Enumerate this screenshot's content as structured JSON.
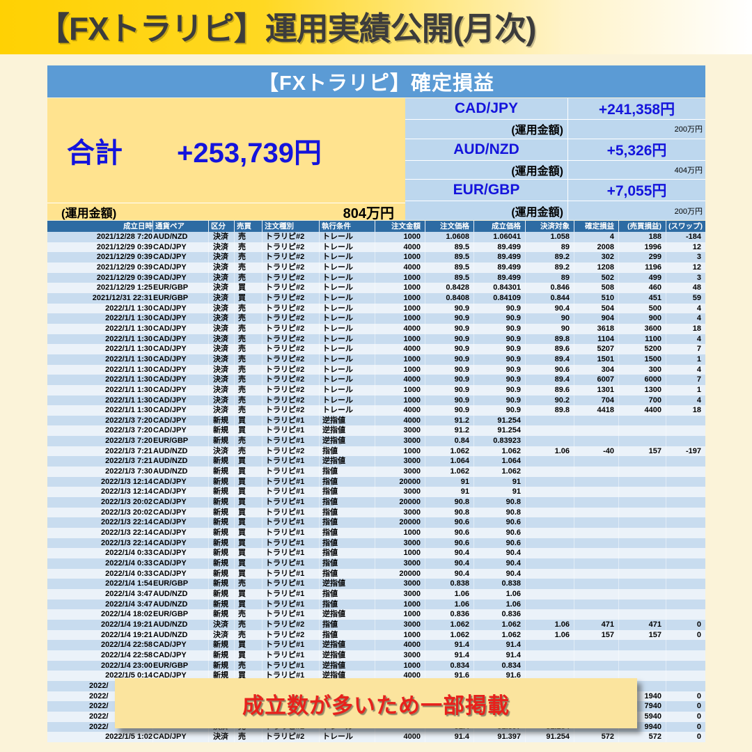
{
  "page": {
    "title": "【FXトラリピ】運用実績公開(月次)"
  },
  "summary": {
    "header": "【FXトラリピ】確定損益",
    "total_label": "合計",
    "total_value": "+253,739円",
    "total_fund_label": "(運用金額)",
    "total_fund_value": "804万円",
    "pairs": [
      {
        "pair": "CAD/JPY",
        "profit": "+241,358円",
        "fund_label": "(運用金額)",
        "fund_value": "200万円"
      },
      {
        "pair": "AUD/NZD",
        "profit": "+5,326円",
        "fund_label": "(運用金額)",
        "fund_value": "404万円"
      },
      {
        "pair": "EUR/GBP",
        "profit": "+7,055円",
        "fund_label": "(運用金額)",
        "fund_value": "200万円"
      }
    ]
  },
  "overlay": {
    "text": "成立数が多いため一部掲載"
  },
  "colors": {
    "title_bar_gold": "#FFD103",
    "page_background": "#FBF3D9",
    "summary_header_blue": "#5B9BD5",
    "summary_cell_blue": "#BDD7EE",
    "summary_cream": "#FFE38F",
    "accent_blue_text": "#1414DC",
    "table_header_blue": "#2D6BA3",
    "row_blue": "#C8DCEF",
    "row_light": "#EBF2F9",
    "overlay_bg": "#FBE49E",
    "overlay_red": "#E8211C"
  },
  "table": {
    "columns": [
      "成立日時",
      "通貨ペア",
      "区分",
      "売買",
      "注文種別",
      "執行条件",
      "注文金額",
      "注文価格",
      "成立価格",
      "決済対象",
      "確定損益",
      "(売買損益)",
      "(スワップ)"
    ],
    "rows": [
      {
        "c": [
          "2021/12/28 7:20",
          "AUD/NZD",
          "決済",
          "売",
          "トラリピ#2",
          "トレール",
          "1000",
          "1.0608",
          "1.06041",
          "1.058",
          "4",
          "188",
          "-184"
        ]
      },
      {
        "c": [
          "2021/12/29 0:39",
          "CAD/JPY",
          "決済",
          "売",
          "トラリピ#2",
          "トレール",
          "4000",
          "89.5",
          "89.499",
          "89",
          "2008",
          "1996",
          "12"
        ]
      },
      {
        "c": [
          "2021/12/29 0:39",
          "CAD/JPY",
          "決済",
          "売",
          "トラリピ#2",
          "トレール",
          "1000",
          "89.5",
          "89.499",
          "89.2",
          "302",
          "299",
          "3"
        ]
      },
      {
        "c": [
          "2021/12/29 0:39",
          "CAD/JPY",
          "決済",
          "売",
          "トラリピ#2",
          "トレール",
          "4000",
          "89.5",
          "89.499",
          "89.2",
          "1208",
          "1196",
          "12"
        ]
      },
      {
        "c": [
          "2021/12/29 0:39",
          "CAD/JPY",
          "決済",
          "売",
          "トラリピ#2",
          "トレール",
          "1000",
          "89.5",
          "89.499",
          "89",
          "502",
          "499",
          "3"
        ]
      },
      {
        "c": [
          "2021/12/29 1:25",
          "EUR/GBP",
          "決済",
          "買",
          "トラリピ#2",
          "トレール",
          "1000",
          "0.8428",
          "0.84301",
          "0.846",
          "508",
          "460",
          "48"
        ]
      },
      {
        "c": [
          "2021/12/31 22:31",
          "EUR/GBP",
          "決済",
          "買",
          "トラリピ#2",
          "トレール",
          "1000",
          "0.8408",
          "0.84109",
          "0.844",
          "510",
          "451",
          "59"
        ]
      },
      {
        "c": [
          "2022/1/1 1:30",
          "CAD/JPY",
          "決済",
          "売",
          "トラリピ#2",
          "トレール",
          "1000",
          "90.9",
          "90.9",
          "90.4",
          "504",
          "500",
          "4"
        ]
      },
      {
        "c": [
          "2022/1/1 1:30",
          "CAD/JPY",
          "決済",
          "売",
          "トラリピ#2",
          "トレール",
          "1000",
          "90.9",
          "90.9",
          "90",
          "904",
          "900",
          "4"
        ]
      },
      {
        "c": [
          "2022/1/1 1:30",
          "CAD/JPY",
          "決済",
          "売",
          "トラリピ#2",
          "トレール",
          "4000",
          "90.9",
          "90.9",
          "90",
          "3618",
          "3600",
          "18"
        ]
      },
      {
        "c": [
          "2022/1/1 1:30",
          "CAD/JPY",
          "決済",
          "売",
          "トラリピ#2",
          "トレール",
          "1000",
          "90.9",
          "90.9",
          "89.8",
          "1104",
          "1100",
          "4"
        ]
      },
      {
        "c": [
          "2022/1/1 1:30",
          "CAD/JPY",
          "決済",
          "売",
          "トラリピ#2",
          "トレール",
          "4000",
          "90.9",
          "90.9",
          "89.6",
          "5207",
          "5200",
          "7"
        ]
      },
      {
        "c": [
          "2022/1/1 1:30",
          "CAD/JPY",
          "決済",
          "売",
          "トラリピ#2",
          "トレール",
          "1000",
          "90.9",
          "90.9",
          "89.4",
          "1501",
          "1500",
          "1"
        ]
      },
      {
        "c": [
          "2022/1/1 1:30",
          "CAD/JPY",
          "決済",
          "売",
          "トラリピ#2",
          "トレール",
          "1000",
          "90.9",
          "90.9",
          "90.6",
          "304",
          "300",
          "4"
        ]
      },
      {
        "c": [
          "2022/1/1 1:30",
          "CAD/JPY",
          "決済",
          "売",
          "トラリピ#2",
          "トレール",
          "4000",
          "90.9",
          "90.9",
          "89.4",
          "6007",
          "6000",
          "7"
        ]
      },
      {
        "c": [
          "2022/1/1 1:30",
          "CAD/JPY",
          "決済",
          "売",
          "トラリピ#2",
          "トレール",
          "1000",
          "90.9",
          "90.9",
          "89.6",
          "1301",
          "1300",
          "1"
        ]
      },
      {
        "c": [
          "2022/1/1 1:30",
          "CAD/JPY",
          "決済",
          "売",
          "トラリピ#2",
          "トレール",
          "1000",
          "90.9",
          "90.9",
          "90.2",
          "704",
          "700",
          "4"
        ]
      },
      {
        "c": [
          "2022/1/1 1:30",
          "CAD/JPY",
          "決済",
          "売",
          "トラリピ#2",
          "トレール",
          "4000",
          "90.9",
          "90.9",
          "89.8",
          "4418",
          "4400",
          "18"
        ]
      },
      {
        "c": [
          "2022/1/3 7:20",
          "CAD/JPY",
          "新規",
          "買",
          "トラリピ#1",
          "逆指値",
          "4000",
          "91.2",
          "91.254",
          "",
          "",
          "",
          ""
        ]
      },
      {
        "c": [
          "2022/1/3 7:20",
          "CAD/JPY",
          "新規",
          "買",
          "トラリピ#1",
          "逆指値",
          "3000",
          "91.2",
          "91.254",
          "",
          "",
          "",
          ""
        ]
      },
      {
        "c": [
          "2022/1/3 7:20",
          "EUR/GBP",
          "新規",
          "売",
          "トラリピ#1",
          "逆指値",
          "3000",
          "0.84",
          "0.83923",
          "",
          "",
          "",
          ""
        ]
      },
      {
        "c": [
          "2022/1/3 7:21",
          "AUD/NZD",
          "決済",
          "売",
          "トラリピ#2",
          "指値",
          "1000",
          "1.062",
          "1.062",
          "1.06",
          "-40",
          "157",
          "-197"
        ]
      },
      {
        "c": [
          "2022/1/3 7:21",
          "AUD/NZD",
          "新規",
          "買",
          "トラリピ#1",
          "逆指値",
          "3000",
          "1.064",
          "1.064",
          "",
          "",
          "",
          ""
        ]
      },
      {
        "c": [
          "2022/1/3 7:30",
          "AUD/NZD",
          "新規",
          "買",
          "トラリピ#1",
          "指値",
          "3000",
          "1.062",
          "1.062",
          "",
          "",
          "",
          ""
        ]
      },
      {
        "c": [
          "2022/1/3 12:14",
          "CAD/JPY",
          "新規",
          "買",
          "トラリピ#1",
          "指値",
          "20000",
          "91",
          "91",
          "",
          "",
          "",
          ""
        ]
      },
      {
        "c": [
          "2022/1/3 12:14",
          "CAD/JPY",
          "新規",
          "買",
          "トラリピ#1",
          "指値",
          "3000",
          "91",
          "91",
          "",
          "",
          "",
          ""
        ]
      },
      {
        "c": [
          "2022/1/3 20:02",
          "CAD/JPY",
          "新規",
          "買",
          "トラリピ#1",
          "指値",
          "20000",
          "90.8",
          "90.8",
          "",
          "",
          "",
          ""
        ]
      },
      {
        "c": [
          "2022/1/3 20:02",
          "CAD/JPY",
          "新規",
          "買",
          "トラリピ#1",
          "指値",
          "3000",
          "90.8",
          "90.8",
          "",
          "",
          "",
          ""
        ]
      },
      {
        "c": [
          "2022/1/3 22:14",
          "CAD/JPY",
          "新規",
          "買",
          "トラリピ#1",
          "指値",
          "20000",
          "90.6",
          "90.6",
          "",
          "",
          "",
          ""
        ]
      },
      {
        "c": [
          "2022/1/3 22:14",
          "CAD/JPY",
          "新規",
          "買",
          "トラリピ#1",
          "指値",
          "1000",
          "90.6",
          "90.6",
          "",
          "",
          "",
          ""
        ]
      },
      {
        "c": [
          "2022/1/3 22:14",
          "CAD/JPY",
          "新規",
          "買",
          "トラリピ#1",
          "指値",
          "3000",
          "90.6",
          "90.6",
          "",
          "",
          "",
          ""
        ]
      },
      {
        "c": [
          "2022/1/4 0:33",
          "CAD/JPY",
          "新規",
          "買",
          "トラリピ#1",
          "指値",
          "1000",
          "90.4",
          "90.4",
          "",
          "",
          "",
          ""
        ]
      },
      {
        "c": [
          "2022/1/4 0:33",
          "CAD/JPY",
          "新規",
          "買",
          "トラリピ#1",
          "指値",
          "3000",
          "90.4",
          "90.4",
          "",
          "",
          "",
          ""
        ]
      },
      {
        "c": [
          "2022/1/4 0:33",
          "CAD/JPY",
          "新規",
          "買",
          "トラリピ#1",
          "指値",
          "20000",
          "90.4",
          "90.4",
          "",
          "",
          "",
          ""
        ]
      },
      {
        "c": [
          "2022/1/4 1:54",
          "EUR/GBP",
          "新規",
          "売",
          "トラリピ#1",
          "逆指値",
          "3000",
          "0.838",
          "0.838",
          "",
          "",
          "",
          ""
        ]
      },
      {
        "c": [
          "2022/1/4 3:47",
          "AUD/NZD",
          "新規",
          "買",
          "トラリピ#1",
          "指値",
          "3000",
          "1.06",
          "1.06",
          "",
          "",
          "",
          ""
        ]
      },
      {
        "c": [
          "2022/1/4 3:47",
          "AUD/NZD",
          "新規",
          "買",
          "トラリピ#1",
          "指値",
          "1000",
          "1.06",
          "1.06",
          "",
          "",
          "",
          ""
        ]
      },
      {
        "c": [
          "2022/1/4 18:02",
          "EUR/GBP",
          "新規",
          "売",
          "トラリピ#1",
          "逆指値",
          "1000",
          "0.836",
          "0.836",
          "",
          "",
          "",
          ""
        ]
      },
      {
        "c": [
          "2022/1/4 19:21",
          "AUD/NZD",
          "決済",
          "売",
          "トラリピ#2",
          "指値",
          "3000",
          "1.062",
          "1.062",
          "1.06",
          "471",
          "471",
          "0"
        ]
      },
      {
        "c": [
          "2022/1/4 19:21",
          "AUD/NZD",
          "決済",
          "売",
          "トラリピ#2",
          "指値",
          "1000",
          "1.062",
          "1.062",
          "1.06",
          "157",
          "157",
          "0"
        ]
      },
      {
        "c": [
          "2022/1/4 22:58",
          "CAD/JPY",
          "新規",
          "買",
          "トラリピ#1",
          "逆指値",
          "4000",
          "91.4",
          "91.4",
          "",
          "",
          "",
          ""
        ]
      },
      {
        "c": [
          "2022/1/4 22:58",
          "CAD/JPY",
          "新規",
          "買",
          "トラリピ#1",
          "逆指値",
          "3000",
          "91.4",
          "91.4",
          "",
          "",
          "",
          ""
        ]
      },
      {
        "c": [
          "2022/1/4 23:00",
          "EUR/GBP",
          "新規",
          "売",
          "トラリピ#1",
          "逆指値",
          "1000",
          "0.834",
          "0.834",
          "",
          "",
          "",
          ""
        ]
      },
      {
        "c": [
          "2022/1/5 0:14",
          "CAD/JPY",
          "新規",
          "買",
          "トラリピ#1",
          "逆指値",
          "4000",
          "91.6",
          "91.6",
          "",
          "",
          "",
          ""
        ]
      },
      {
        "c": [
          "2022/",
          "",
          "",
          "",
          "",
          "",
          "",
          "",
          "",
          "",
          "",
          "",
          ""
        ],
        "partial": true
      },
      {
        "c": [
          "2022/",
          "",
          "",
          "",
          "",
          "",
          "",
          "",
          "",
          "",
          "",
          "1940",
          "0"
        ],
        "partial": true
      },
      {
        "c": [
          "2022/",
          "",
          "",
          "",
          "",
          "",
          "",
          "",
          "",
          "",
          "",
          "7940",
          "0"
        ],
        "partial": true
      },
      {
        "c": [
          "2022/",
          "",
          "",
          "",
          "",
          "",
          "",
          "",
          "",
          "",
          "",
          "5940",
          "0"
        ],
        "partial": true
      },
      {
        "c": [
          "2022/",
          "",
          "決済",
          "売",
          "トラリピ#2",
          "トレール",
          "",
          "91.4",
          "91.397",
          "91.254",
          "",
          "9940",
          "0"
        ],
        "partial": true
      },
      {
        "c": [
          "2022/1/5 1:02",
          "CAD/JPY",
          "決済",
          "売",
          "トラリピ#2",
          "トレール",
          "4000",
          "91.4",
          "91.397",
          "91.254",
          "572",
          "572",
          "0"
        ]
      }
    ]
  }
}
